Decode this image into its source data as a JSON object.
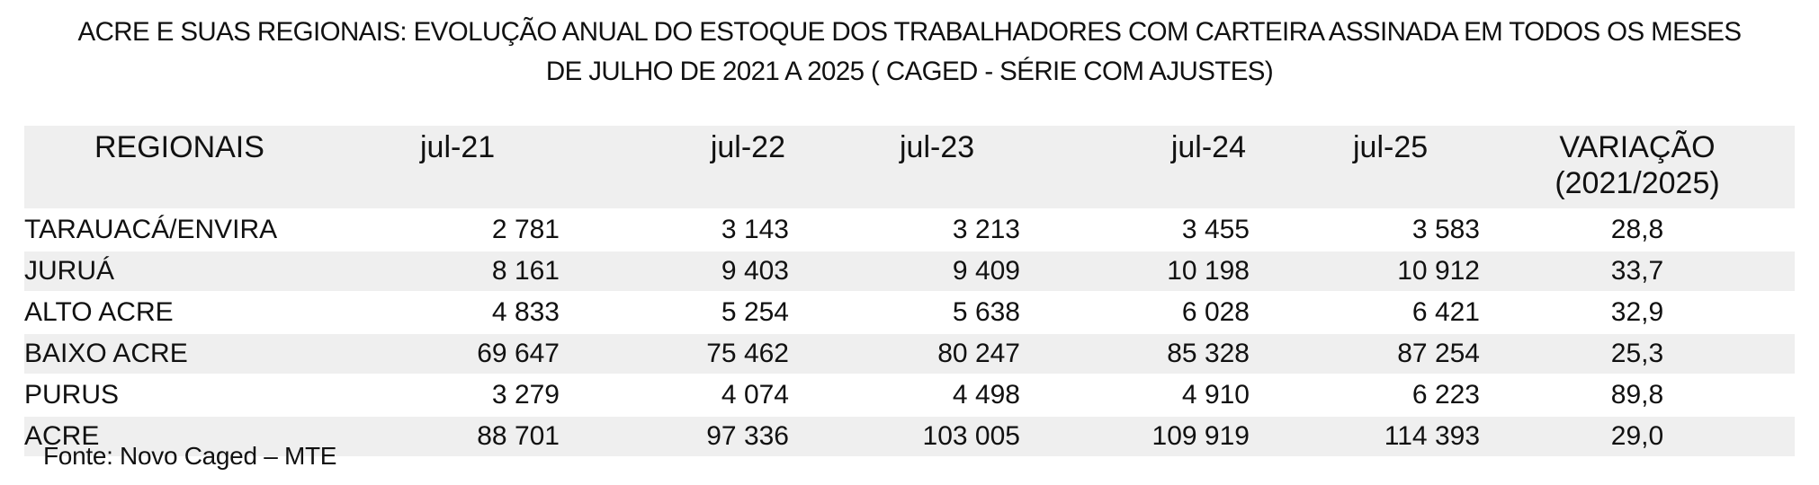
{
  "title": {
    "line1": "ACRE E SUAS REGIONAIS: EVOLUÇÃO ANUAL DO ESTOQUE DOS TRABALHADORES COM CARTEIRA ASSINADA  EM TODOS OS MESES",
    "line2": "DE JULHO DE 2021 A 2025 ( CAGED - SÉRIE COM AJUSTES)"
  },
  "table": {
    "headers": {
      "regionais": "REGIONAIS",
      "jul21": "jul-21",
      "jul22": "jul-22",
      "jul23": "jul-23",
      "jul24": "jul-24",
      "jul25": "jul-25",
      "variacao_line1": "VARIAÇÃO",
      "variacao_line2": "(2021/2025)"
    },
    "rows": [
      {
        "name": "TARAUACÁ/ENVIRA",
        "jul21": "2 781",
        "jul22": "3 143",
        "jul23": "3 213",
        "jul24": "3 455",
        "jul25": "3 583",
        "variacao": "28,8"
      },
      {
        "name": "JURUÁ",
        "jul21": "8 161",
        "jul22": "9 403",
        "jul23": "9 409",
        "jul24": "10 198",
        "jul25": "10 912",
        "variacao": "33,7"
      },
      {
        "name": "ALTO ACRE",
        "jul21": "4 833",
        "jul22": "5 254",
        "jul23": "5 638",
        "jul24": "6 028",
        "jul25": "6 421",
        "variacao": "32,9"
      },
      {
        "name": "BAIXO ACRE",
        "jul21": "69 647",
        "jul22": "75 462",
        "jul23": "80 247",
        "jul24": "85 328",
        "jul25": "87 254",
        "variacao": "25,3"
      },
      {
        "name": "PURUS",
        "jul21": "3 279",
        "jul22": "4 074",
        "jul23": "4 498",
        "jul24": "4 910",
        "jul25": "6 223",
        "variacao": "89,8"
      }
    ],
    "total": {
      "name": "ACRE",
      "jul21": "88 701",
      "jul22": "97 336",
      "jul23": "103 005",
      "jul24": "109 919",
      "jul25": "114 393",
      "variacao": "29,0"
    }
  },
  "source": "Fonte: Novo Caged – MTE"
}
